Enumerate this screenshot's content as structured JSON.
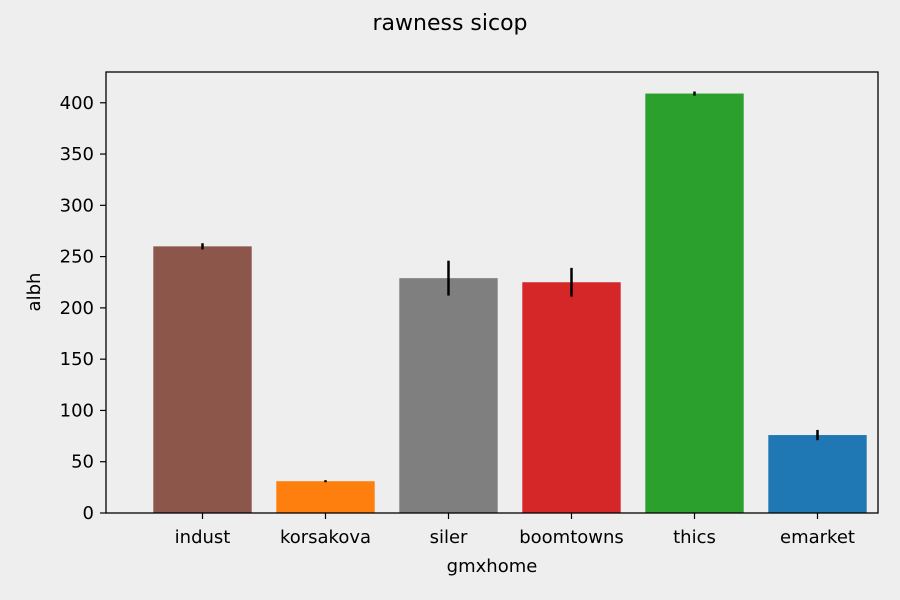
{
  "chart_data": {
    "type": "bar",
    "title": "rawness sicop",
    "xlabel": "gmxhome",
    "ylabel": "albh",
    "categories": [
      "indust",
      "korsakova",
      "siler",
      "boomtowns",
      "thics",
      "emarket"
    ],
    "values": [
      260,
      31,
      229,
      225,
      409,
      76
    ],
    "errors": [
      3,
      1,
      17,
      14,
      2,
      5
    ],
    "colors": [
      "#8c564b",
      "#ff7f0e",
      "#7f7f7f",
      "#d62728",
      "#2ca02c",
      "#1f77b4"
    ],
    "ylim": [
      0,
      430
    ],
    "yticks": [
      0,
      50,
      100,
      150,
      200,
      250,
      300,
      350,
      400
    ],
    "grid": false,
    "legend": "none"
  }
}
